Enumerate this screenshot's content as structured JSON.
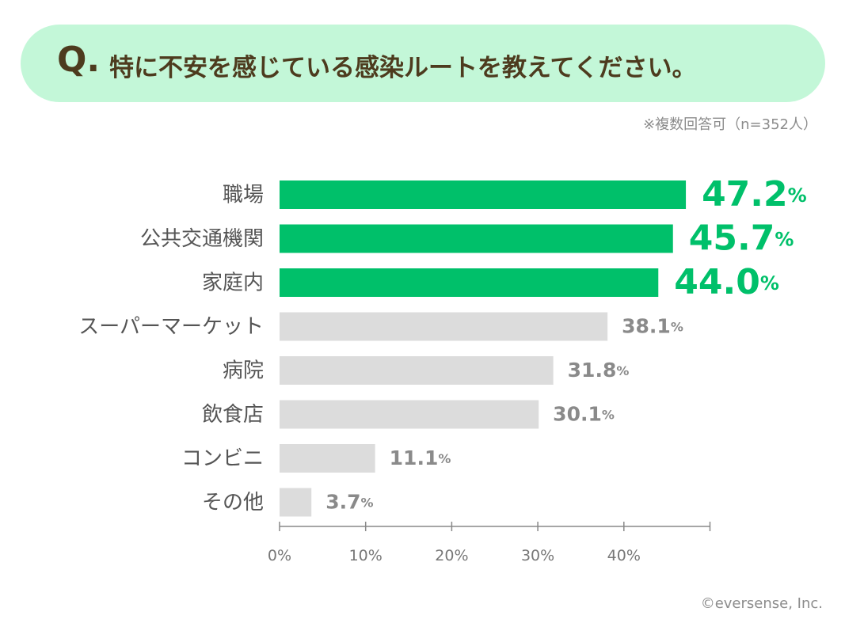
{
  "question": {
    "mark": "Q.",
    "text": "特に不安を感じている感染ルートを教えてください。"
  },
  "note": "※複数回答可（n=352人）",
  "credit": "©eversense, Inc.",
  "colors": {
    "banner_bg": "#c3f7d8",
    "question_text": "#4d3b1e",
    "highlight_bar": "#00c06a",
    "normal_bar": "#dcdcdc",
    "highlight_value": "#00c06a",
    "normal_value": "#8a8a8a"
  },
  "chart_data": {
    "type": "bar",
    "orientation": "horizontal",
    "title": "特に不安を感じている感染ルートを教えてください。",
    "categories": [
      "職場",
      "公共交通機関",
      "家庭内",
      "スーパーマーケット",
      "病院",
      "飲食店",
      "コンビニ",
      "その他"
    ],
    "values": [
      47.2,
      45.7,
      44.0,
      38.1,
      31.8,
      30.1,
      11.1,
      3.7
    ],
    "value_labels": [
      "47.2",
      "45.7",
      "44.0",
      "38.1",
      "31.8",
      "30.1",
      "11.1",
      "3.7"
    ],
    "unit": "%",
    "highlighted": [
      true,
      true,
      true,
      false,
      false,
      false,
      false,
      false
    ],
    "xlim": [
      0,
      50
    ],
    "xticks": [
      0,
      10,
      20,
      30,
      40
    ],
    "xtick_labels": [
      "0%",
      "10%",
      "20%",
      "30%",
      "40%"
    ],
    "grid": false,
    "xlabel": "",
    "ylabel": ""
  }
}
